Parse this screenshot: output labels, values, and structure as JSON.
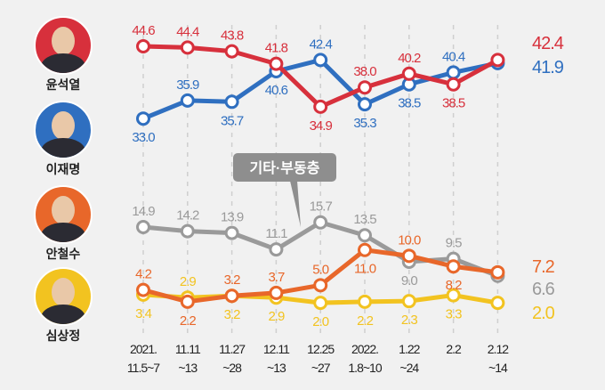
{
  "candidates": [
    {
      "name": "윤석열",
      "color": "#d7303c"
    },
    {
      "name": "이재명",
      "color": "#2f6fc0"
    },
    {
      "name": "안철수",
      "color": "#e8672a"
    },
    {
      "name": "심상정",
      "color": "#f2c320"
    }
  ],
  "chart_data": {
    "type": "line",
    "categories": [
      [
        "2021.",
        "11.5~7"
      ],
      [
        "11.11",
        "~13"
      ],
      [
        "11.27",
        "~28"
      ],
      [
        "12.11",
        "~13"
      ],
      [
        "12.25",
        "~27"
      ],
      [
        "2022.",
        "1.8~10"
      ],
      [
        "1.22",
        "~24"
      ],
      [
        "2.2",
        ""
      ],
      [
        "2.12",
        "~14"
      ]
    ],
    "annotation": "기타·부동층",
    "grid": "vertical dashed",
    "series": [
      {
        "name": "윤석열",
        "color": "#d7303c",
        "values": [
          44.6,
          44.4,
          43.8,
          41.8,
          34.9,
          38.0,
          40.2,
          38.5,
          42.4
        ]
      },
      {
        "name": "이재명",
        "color": "#2f6fc0",
        "values": [
          33.0,
          35.9,
          35.7,
          40.6,
          42.4,
          35.3,
          38.5,
          40.4,
          41.9
        ]
      },
      {
        "name": "기타·부동층",
        "color": "#9a9a9a",
        "values": [
          14.9,
          14.2,
          13.9,
          11.1,
          15.7,
          13.5,
          9.0,
          9.5,
          6.6
        ]
      },
      {
        "name": "안철수",
        "color": "#e8672a",
        "values": [
          4.2,
          2.2,
          3.2,
          3.7,
          5.0,
          11.0,
          10.0,
          8.2,
          7.2
        ]
      },
      {
        "name": "심상정",
        "color": "#f2c320",
        "values": [
          3.4,
          2.9,
          3.2,
          2.9,
          2.0,
          2.2,
          2.3,
          3.3,
          2.0
        ]
      }
    ]
  }
}
